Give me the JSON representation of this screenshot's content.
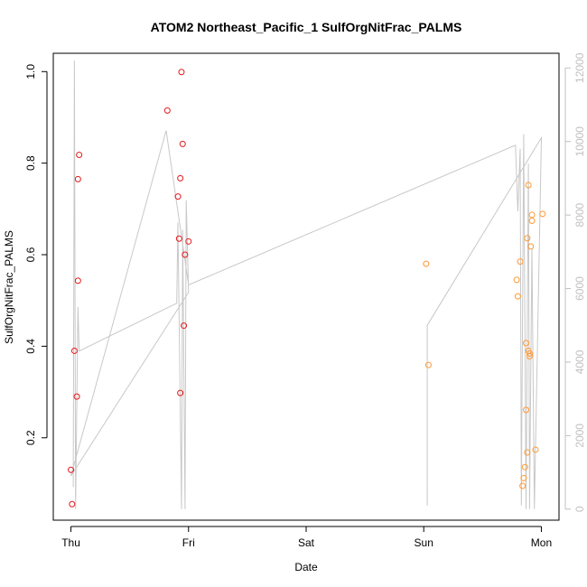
{
  "chart_data": {
    "type": "scatter",
    "title": "ATOM2 Northeast_Pacific_1 SulfOrgNitFrac_PALMS",
    "xlabel": "Date",
    "ylabel": "SulfOrgNitFrac_PALMS",
    "x_ticks": [
      {
        "label": "Thu",
        "value": 0
      },
      {
        "label": "Fri",
        "value": 1
      },
      {
        "label": "Sat",
        "value": 2
      },
      {
        "label": "Sun",
        "value": 3
      },
      {
        "label": "Mon",
        "value": 4
      }
    ],
    "xlim": [
      -0.15,
      4.15
    ],
    "y_ticks": [
      "0.2",
      "0.4",
      "0.6",
      "0.8",
      "1.0"
    ],
    "ylim": [
      0.02,
      1.04
    ],
    "y2_ticks": [
      "0",
      "2000",
      "4000",
      "6000",
      "8000",
      "10000",
      "12000"
    ],
    "y2lim": [
      -300,
      12400
    ],
    "grid": false,
    "series": [
      {
        "color": "#e41a1c",
        "points": [
          {
            "x": 0.0,
            "y": 0.13
          },
          {
            "x": 0.01,
            "y": 0.055
          },
          {
            "x": 0.03,
            "y": 0.39
          },
          {
            "x": 0.05,
            "y": 0.29
          },
          {
            "x": 0.06,
            "y": 0.543
          },
          {
            "x": 0.06,
            "y": 0.765
          },
          {
            "x": 0.07,
            "y": 0.818
          },
          {
            "x": 0.82,
            "y": 0.915
          },
          {
            "x": 0.91,
            "y": 0.727
          },
          {
            "x": 0.92,
            "y": 0.635
          },
          {
            "x": 0.93,
            "y": 0.298
          },
          {
            "x": 0.93,
            "y": 0.767
          },
          {
            "x": 0.94,
            "y": 0.999
          },
          {
            "x": 0.95,
            "y": 0.842
          },
          {
            "x": 0.96,
            "y": 0.445
          },
          {
            "x": 0.97,
            "y": 0.6
          },
          {
            "x": 1.0,
            "y": 0.629
          }
        ]
      },
      {
        "color": "#ff9933",
        "points": [
          {
            "x": 3.02,
            "y": 0.58
          },
          {
            "x": 3.04,
            "y": 0.359
          },
          {
            "x": 3.79,
            "y": 0.545
          },
          {
            "x": 3.8,
            "y": 0.509
          },
          {
            "x": 3.82,
            "y": 0.585
          },
          {
            "x": 3.84,
            "y": 0.095
          },
          {
            "x": 3.85,
            "y": 0.112
          },
          {
            "x": 3.86,
            "y": 0.136
          },
          {
            "x": 3.87,
            "y": 0.407
          },
          {
            "x": 3.87,
            "y": 0.261
          },
          {
            "x": 3.88,
            "y": 0.168
          },
          {
            "x": 3.88,
            "y": 0.636
          },
          {
            "x": 3.89,
            "y": 0.39
          },
          {
            "x": 3.89,
            "y": 0.752
          },
          {
            "x": 3.9,
            "y": 0.378
          },
          {
            "x": 3.9,
            "y": 0.384
          },
          {
            "x": 3.91,
            "y": 0.618
          },
          {
            "x": 3.92,
            "y": 0.687
          },
          {
            "x": 3.92,
            "y": 0.674
          },
          {
            "x": 3.95,
            "y": 0.174
          },
          {
            "x": 4.01,
            "y": 0.689
          }
        ]
      }
    ],
    "altitude_track": {
      "color": "#c8c8c8",
      "points": [
        {
          "x": 0.02,
          "y2": 600
        },
        {
          "x": 0.03,
          "y2": 12200
        },
        {
          "x": 0.04,
          "y2": 0
        },
        {
          "x": 0.06,
          "y2": 5500
        },
        {
          "x": 0.07,
          "y2": 4300
        },
        {
          "x": 0.9,
          "y2": 5600
        },
        {
          "x": 0.91,
          "y2": 7800
        },
        {
          "x": 0.94,
          "y2": 0
        },
        {
          "x": 0.95,
          "y2": 7600
        },
        {
          "x": 0.97,
          "y2": 0
        },
        {
          "x": 0.98,
          "y2": 8400
        },
        {
          "x": 1.0,
          "y2": 5900
        },
        {
          "x": 0.0,
          "y2": 900
        },
        {
          "x": 0.81,
          "y2": 10300
        },
        {
          "x": 0.95,
          "y2": 7200
        },
        {
          "x": 1.0,
          "y2": 6100
        },
        {
          "x": 3.78,
          "y2": 9900
        },
        {
          "x": 3.8,
          "y2": 8100
        },
        {
          "x": 3.82,
          "y2": 9800
        },
        {
          "x": 3.83,
          "y2": 100
        },
        {
          "x": 3.85,
          "y2": 10200
        },
        {
          "x": 3.87,
          "y2": 0
        },
        {
          "x": 3.89,
          "y2": 9400
        },
        {
          "x": 3.9,
          "y2": 0
        },
        {
          "x": 3.92,
          "y2": 7100
        },
        {
          "x": 3.94,
          "y2": 0
        },
        {
          "x": 4.0,
          "y2": 10100
        },
        {
          "x": 3.03,
          "y2": 5000
        },
        {
          "x": 3.03,
          "y2": 100
        }
      ]
    }
  }
}
